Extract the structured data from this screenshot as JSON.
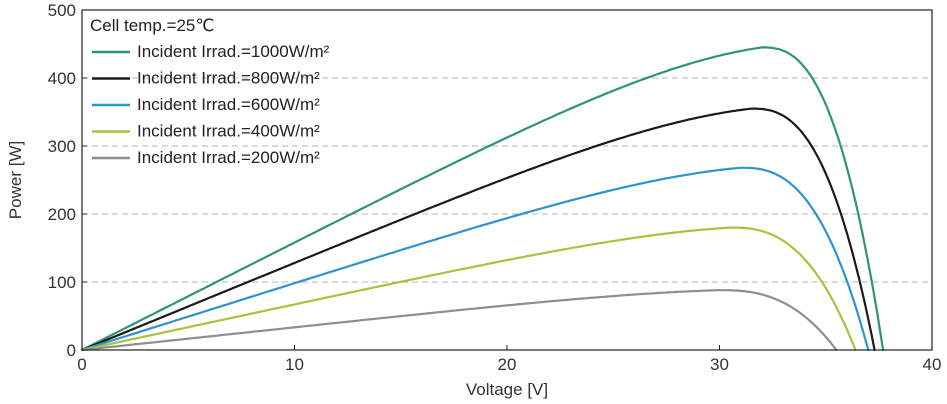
{
  "chart_data": {
    "type": "line",
    "title": "",
    "xlabel": "Voltage [V]",
    "ylabel": "Power [W]",
    "xlim": [
      0,
      40
    ],
    "ylim": [
      0,
      500
    ],
    "xticks": [
      "0",
      "10",
      "20",
      "30",
      "40"
    ],
    "yticks": [
      "0",
      "100",
      "200",
      "300",
      "400",
      "500"
    ],
    "grid": "horizontal dashed",
    "legend_position": "top-left",
    "legend_title": "Cell temp.=25℃",
    "series": [
      {
        "name": "Incident Irrad.=1000W/m²",
        "color": "#2e9477",
        "vmp": 32.0,
        "pmp": 445,
        "voc": 37.7
      },
      {
        "name": "Incident Irrad.=800W/m²",
        "color": "#1a1a1a",
        "vmp": 31.5,
        "pmp": 355,
        "voc": 37.3
      },
      {
        "name": "Incident Irrad.=600W/m²",
        "color": "#2b95cf",
        "vmp": 31.0,
        "pmp": 268,
        "voc": 37.0
      },
      {
        "name": "Incident Irrad.=400W/m²",
        "color": "#a9c23e",
        "vmp": 30.5,
        "pmp": 180,
        "voc": 36.4
      },
      {
        "name": "Incident Irrad.=200W/m²",
        "color": "#8e8e8e",
        "vmp": 30.0,
        "pmp": 88,
        "voc": 35.5
      }
    ]
  }
}
